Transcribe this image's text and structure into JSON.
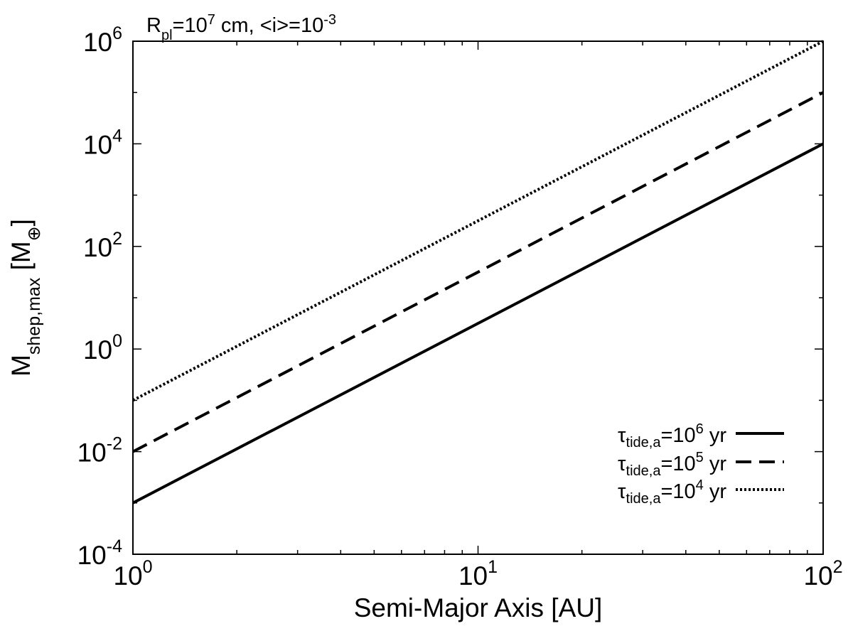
{
  "chart_data": {
    "type": "line",
    "title": {
      "parts": [
        {
          "text": "R",
          "style": "normal"
        },
        {
          "text": "pl",
          "style": "sub"
        },
        {
          "text": "=10",
          "style": "normal"
        },
        {
          "text": "7",
          "style": "sup"
        },
        {
          "text": " cm, <i>=10",
          "style": "normal"
        },
        {
          "text": "-3",
          "style": "sup"
        }
      ]
    },
    "xlabel": "Semi-Major Axis [AU]",
    "ylabel": {
      "parts": [
        {
          "text": "M",
          "style": "normal"
        },
        {
          "text": "shep,max",
          "style": "sub"
        },
        {
          "text": " [M",
          "style": "normal"
        },
        {
          "text": "⊕",
          "style": "sub"
        },
        {
          "text": "]",
          "style": "normal"
        }
      ]
    },
    "xscale": "log",
    "yscale": "log",
    "xlim": [
      1,
      100
    ],
    "ylim": [
      0.0001,
      1000000
    ],
    "xticks": [
      {
        "value": 1,
        "base": "10",
        "exp": "0"
      },
      {
        "value": 10,
        "base": "10",
        "exp": "1"
      },
      {
        "value": 100,
        "base": "10",
        "exp": "2"
      }
    ],
    "yticks": [
      {
        "value": 0.0001,
        "base": "10",
        "exp": "-4"
      },
      {
        "value": 0.01,
        "base": "10",
        "exp": "-2"
      },
      {
        "value": 1,
        "base": "10",
        "exp": "0"
      },
      {
        "value": 100,
        "base": "10",
        "exp": "2"
      },
      {
        "value": 10000,
        "base": "10",
        "exp": "4"
      },
      {
        "value": 1000000,
        "base": "10",
        "exp": "6"
      }
    ],
    "grid": false,
    "legend_position": "bottom-right",
    "series": [
      {
        "legend": {
          "sym": "τ",
          "sub": "tide,a",
          "mid": "=10",
          "sup": "6",
          "end": " yr"
        },
        "style": "solid",
        "color": "#000000",
        "x": [
          1,
          100
        ],
        "y": [
          0.001,
          10000
        ]
      },
      {
        "legend": {
          "sym": "τ",
          "sub": "tide,a",
          "mid": "=10",
          "sup": "5",
          "end": " yr"
        },
        "style": "dashed",
        "color": "#000000",
        "x": [
          1,
          100
        ],
        "y": [
          0.01,
          100000
        ]
      },
      {
        "legend": {
          "sym": "τ",
          "sub": "tide,a",
          "mid": "=10",
          "sup": "4",
          "end": " yr"
        },
        "style": "dotted",
        "color": "#000000",
        "x": [
          1,
          100
        ],
        "y": [
          0.1,
          1000000
        ]
      }
    ]
  }
}
